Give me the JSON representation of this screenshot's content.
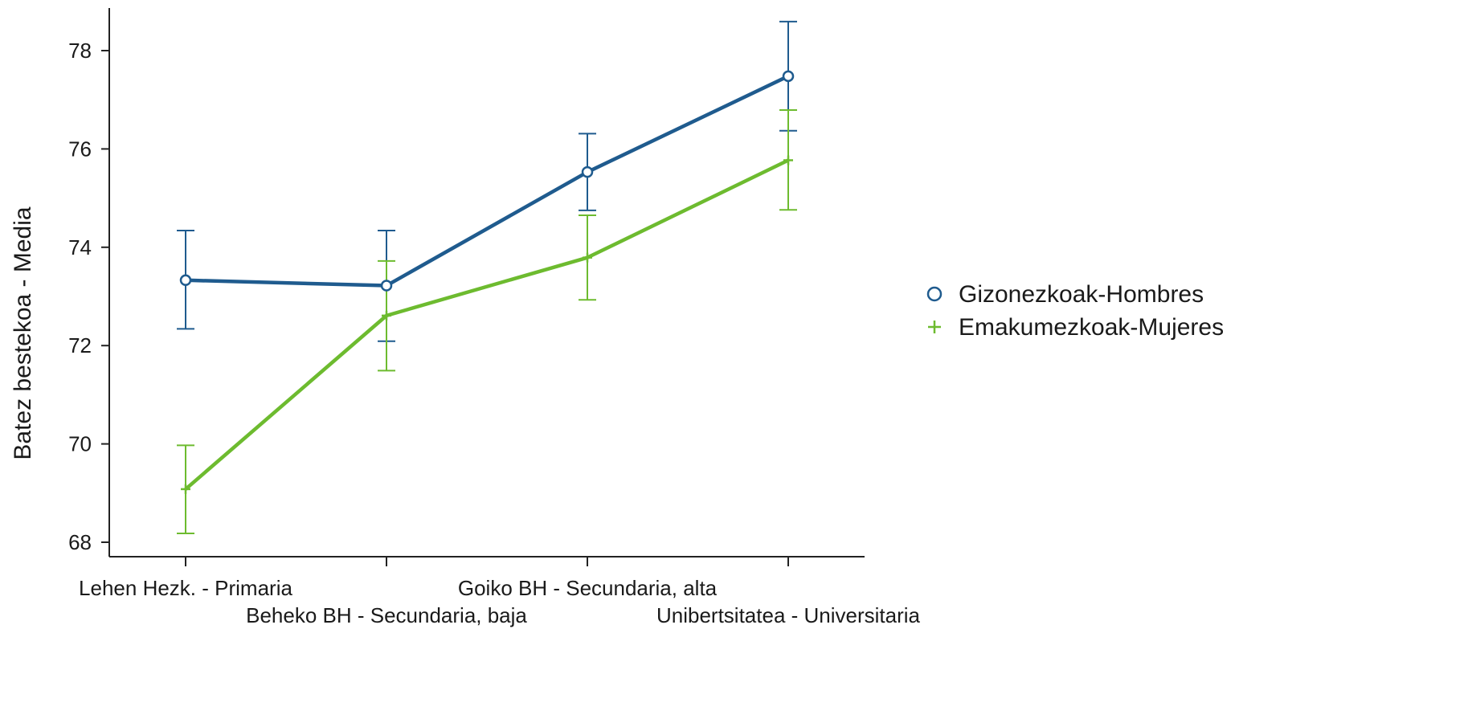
{
  "chart_data": {
    "type": "line",
    "title": "",
    "xlabel": "",
    "ylabel": "Batez bestekoa - Media",
    "categories": [
      "Lehen Hezk. - Primaria",
      "Beheko BH - Secundaria, baja",
      "Goiko BH - Secundaria, alta",
      "Unibertsitatea - Universitaria"
    ],
    "ylim": [
      67.7,
      78.8
    ],
    "yticks": [
      68,
      70,
      72,
      74,
      76,
      78
    ],
    "grid": false,
    "legend_position": "right",
    "error_bars": true,
    "series": [
      {
        "name": "Gizonezkoak-Hombres",
        "marker": "circle",
        "color": "#1f5b8e",
        "values": [
          73.33,
          73.22,
          75.53,
          77.48
        ],
        "lower": [
          72.34,
          72.09,
          74.75,
          76.37
        ],
        "upper": [
          74.34,
          74.34,
          76.31,
          78.59
        ]
      },
      {
        "name": "Emakumezkoak-Mujeres",
        "marker": "plus",
        "color": "#6dbb2f",
        "values": [
          69.08,
          72.61,
          73.79,
          75.77
        ],
        "lower": [
          68.18,
          71.49,
          72.93,
          74.76
        ],
        "upper": [
          69.97,
          73.72,
          74.65,
          76.79
        ]
      }
    ]
  }
}
